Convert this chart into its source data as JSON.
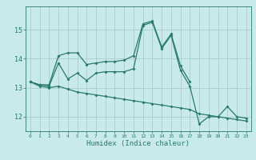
{
  "title": "",
  "xlabel": "Humidex (Indice chaleur)",
  "bg_color": "#c8eaea",
  "grid_color": "#aacccc",
  "line_color": "#2a7a6a",
  "x_ticks": [
    0,
    1,
    2,
    3,
    4,
    5,
    6,
    7,
    8,
    9,
    10,
    11,
    12,
    13,
    14,
    15,
    16,
    17,
    18,
    19,
    20,
    21,
    22,
    23
  ],
  "y_ticks": [
    12,
    13,
    14,
    15
  ],
  "ylim": [
    11.5,
    15.8
  ],
  "xlim": [
    -0.5,
    23.5
  ],
  "line1_x": [
    0,
    1,
    2,
    3,
    4,
    5,
    6,
    7,
    8,
    9,
    10,
    11,
    12,
    13,
    14,
    15,
    16,
    17
  ],
  "line1_y": [
    13.2,
    13.1,
    13.1,
    14.1,
    14.2,
    14.2,
    13.8,
    13.85,
    13.9,
    13.9,
    13.95,
    14.1,
    15.2,
    15.3,
    14.4,
    14.85,
    13.75,
    13.2
  ],
  "line2_x": [
    0,
    1,
    2,
    3,
    4,
    5,
    6,
    7,
    8,
    9,
    10,
    11,
    12,
    13,
    14,
    15,
    16,
    17,
    18,
    19,
    20,
    21,
    22,
    23
  ],
  "line2_y": [
    13.2,
    13.1,
    13.05,
    13.85,
    13.3,
    13.5,
    13.25,
    13.5,
    13.55,
    13.55,
    13.55,
    13.65,
    15.15,
    15.25,
    14.35,
    14.8,
    13.6,
    13.05,
    11.75,
    12.0,
    12.0,
    12.35,
    12.0,
    11.95
  ],
  "line3_x": [
    0,
    1,
    2,
    3,
    4,
    5,
    6,
    7,
    8,
    9,
    10,
    11,
    12,
    13,
    14,
    15,
    16,
    17,
    18,
    19,
    20,
    21,
    22,
    23
  ],
  "line3_y": [
    13.2,
    13.05,
    13.0,
    13.05,
    12.95,
    12.85,
    12.8,
    12.75,
    12.7,
    12.65,
    12.6,
    12.55,
    12.5,
    12.45,
    12.4,
    12.35,
    12.3,
    12.25,
    12.1,
    12.05,
    12.0,
    11.95,
    11.9,
    11.85
  ]
}
